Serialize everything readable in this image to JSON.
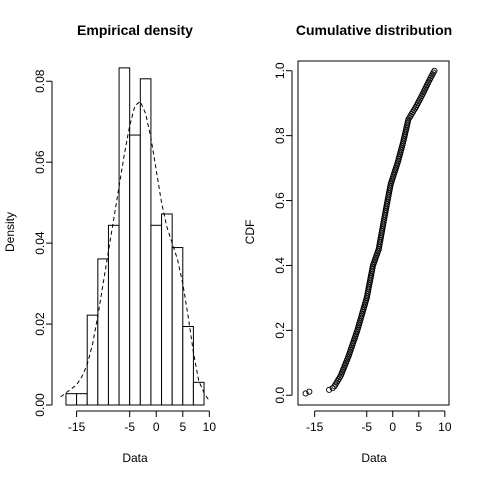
{
  "chart_data": [
    {
      "type": "bar",
      "title": "Empirical density",
      "xlabel": "Data",
      "ylabel": "Density",
      "xlim": [
        -18.5,
        10.5
      ],
      "ylim": [
        0,
        0.085
      ],
      "x_ticks": [
        -15,
        -5,
        0,
        5,
        10
      ],
      "y_ticks": [
        0.0,
        0.02,
        0.04,
        0.06,
        0.08
      ],
      "y_tick_labels": [
        "0.00",
        "0.02",
        "0.04",
        "0.06",
        "0.08"
      ],
      "bin_edges": [
        -17,
        -15,
        -13,
        -11,
        -9,
        -7,
        -5,
        -3,
        -1,
        1,
        3,
        5,
        7,
        9
      ],
      "values": [
        0.0028,
        0.0028,
        0.0222,
        0.0361,
        0.0444,
        0.0833,
        0.0667,
        0.0806,
        0.0444,
        0.0472,
        0.0389,
        0.0194,
        0.0056
      ],
      "density_curve": {
        "style": "dashed",
        "x": [
          -18,
          -17,
          -16,
          -15,
          -14,
          -13,
          -12,
          -11,
          -10,
          -9,
          -8,
          -7,
          -6,
          -5,
          -4,
          -3,
          -2,
          -1,
          0,
          1,
          2,
          3,
          4,
          5,
          6,
          7,
          8,
          9,
          10
        ],
        "y": [
          0.002,
          0.003,
          0.004,
          0.005,
          0.007,
          0.01,
          0.015,
          0.022,
          0.03,
          0.038,
          0.046,
          0.054,
          0.062,
          0.069,
          0.074,
          0.075,
          0.072,
          0.066,
          0.058,
          0.05,
          0.044,
          0.04,
          0.036,
          0.03,
          0.022,
          0.013,
          0.006,
          0.003,
          0.001
        ]
      }
    },
    {
      "type": "scatter",
      "title": "Cumulative distribution",
      "xlabel": "Data",
      "ylabel": "CDF",
      "xlim": [
        -18.2,
        10.8
      ],
      "ylim": [
        -0.03,
        1.03
      ],
      "x_ticks": [
        -15,
        -5,
        0,
        5,
        10
      ],
      "y_ticks": [
        0.0,
        0.2,
        0.4,
        0.6,
        0.8,
        1.0
      ],
      "y_tick_labels": [
        "0.0",
        "0.2",
        "0.4",
        "0.6",
        "0.8",
        "1.0"
      ],
      "n_points": 180,
      "quantile_x": [
        -16.8,
        -16.1,
        -12.0,
        -11.3,
        -10.0,
        -8.5,
        -6.8,
        -5.0,
        -3.8,
        -2.7,
        -1.8,
        -1.0,
        -0.4,
        1.0,
        2.0,
        3.0,
        4.5,
        5.8,
        7.0,
        8.0
      ],
      "quantile_cdf": [
        0.005,
        0.011,
        0.017,
        0.025,
        0.06,
        0.12,
        0.2,
        0.3,
        0.4,
        0.45,
        0.53,
        0.6,
        0.65,
        0.72,
        0.78,
        0.85,
        0.89,
        0.93,
        0.97,
        1.0
      ],
      "marker": "open-circle"
    }
  ]
}
